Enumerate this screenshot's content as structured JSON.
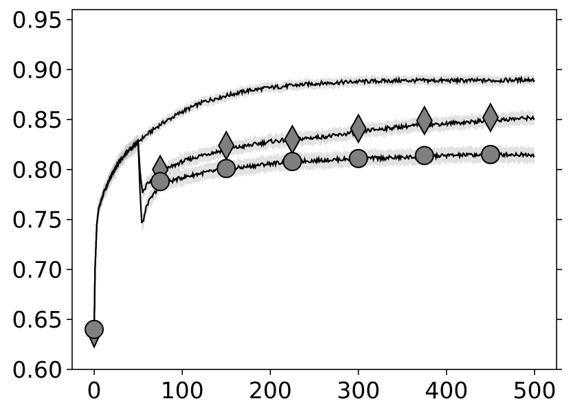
{
  "chart_data": {
    "type": "line",
    "title": "",
    "xlabel": "",
    "ylabel": "",
    "xlim": [
      -25,
      525
    ],
    "ylim": [
      0.6,
      0.96
    ],
    "xticks": [
      0,
      100,
      200,
      300,
      400,
      500
    ],
    "yticks": [
      0.6,
      0.65,
      0.7,
      0.75,
      0.8,
      0.85,
      0.9,
      0.95
    ],
    "xtick_labels": [
      "0",
      "100",
      "200",
      "300",
      "400",
      "500"
    ],
    "ytick_labels": [
      "0.60",
      "0.65",
      "0.70",
      "0.75",
      "0.80",
      "0.85",
      "0.90",
      "0.95"
    ],
    "grid": false,
    "colors": {
      "line": "#000000",
      "band": "#bdbdbd",
      "marker_fill": "#7f7f7f"
    },
    "series": [
      {
        "marker": "none",
        "band_halfwidth": 0.005,
        "x": [
          0,
          1,
          3,
          5,
          10,
          20,
          30,
          40,
          50,
          60,
          75,
          100,
          125,
          150,
          175,
          200,
          225,
          250,
          275,
          300,
          350,
          400,
          450,
          500
        ],
        "y": [
          0.635,
          0.7,
          0.745,
          0.76,
          0.775,
          0.795,
          0.81,
          0.82,
          0.828,
          0.835,
          0.845,
          0.858,
          0.868,
          0.874,
          0.879,
          0.882,
          0.884,
          0.886,
          0.887,
          0.888,
          0.889,
          0.889,
          0.889,
          0.89
        ]
      },
      {
        "marker": "diamond",
        "band_halfwidth": 0.007,
        "x": [
          0,
          1,
          3,
          5,
          10,
          20,
          30,
          40,
          50,
          52,
          55,
          60,
          75,
          100,
          125,
          150,
          175,
          200,
          225,
          250,
          275,
          300,
          350,
          400,
          450,
          500
        ],
        "y": [
          0.635,
          0.7,
          0.745,
          0.76,
          0.775,
          0.795,
          0.81,
          0.82,
          0.828,
          0.8,
          0.776,
          0.785,
          0.797,
          0.808,
          0.815,
          0.82,
          0.824,
          0.828,
          0.83,
          0.832,
          0.834,
          0.838,
          0.843,
          0.846,
          0.849,
          0.852
        ],
        "markers_x": [
          0,
          75,
          150,
          225,
          300,
          375,
          450
        ],
        "markers_y": [
          0.632,
          0.8,
          0.824,
          0.83,
          0.841,
          0.849,
          0.852
        ]
      },
      {
        "marker": "circle",
        "band_halfwidth": 0.008,
        "x": [
          0,
          1,
          3,
          5,
          10,
          20,
          30,
          40,
          50,
          52,
          54,
          56,
          60,
          75,
          100,
          125,
          150,
          175,
          200,
          225,
          250,
          275,
          300,
          350,
          400,
          450,
          500
        ],
        "y": [
          0.635,
          0.7,
          0.745,
          0.76,
          0.775,
          0.795,
          0.81,
          0.82,
          0.826,
          0.78,
          0.745,
          0.75,
          0.765,
          0.785,
          0.792,
          0.797,
          0.8,
          0.803,
          0.806,
          0.808,
          0.809,
          0.81,
          0.811,
          0.812,
          0.814,
          0.815,
          0.815
        ],
        "markers_x": [
          0,
          75,
          150,
          225,
          300,
          375,
          450
        ],
        "markers_y": [
          0.64,
          0.788,
          0.801,
          0.808,
          0.811,
          0.814,
          0.815
        ]
      }
    ]
  }
}
